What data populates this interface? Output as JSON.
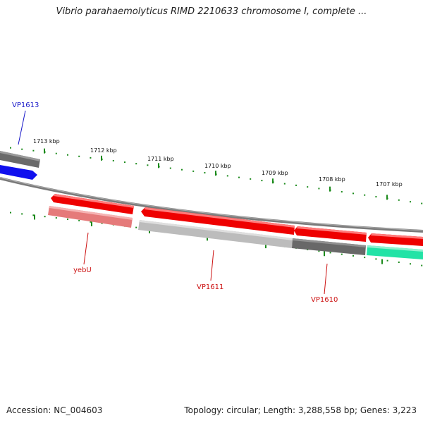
{
  "title": "Vibrio parahaemolyticus RIMD 2210633 chromosome I, complete ...",
  "accession": "Accession: NC_004603",
  "summary": "Topology: circular; Length: 3,288,558 bp; Genes: 3,223",
  "scale_labels": [
    "1713 kbp",
    "1712 kbp",
    "1711 kbp",
    "1710 kbp",
    "1709 kbp",
    "1708 kbp",
    "1707 kbp"
  ],
  "gene_labels": {
    "vp1613": "VP1613",
    "yebu": "yebU",
    "vp1611": "VP1611",
    "vp1610": "VP1610"
  },
  "colors": {
    "tick": "#1b8a1b",
    "backbone": "#808080",
    "red": "#ee0000",
    "pink": "#e57a7a",
    "light_gray": "#b8b8b8",
    "dark_gray": "#686868",
    "blue": "#1010ee",
    "green": "#22e3a6",
    "label_blue": "#1515c8",
    "label_red": "#cc1010"
  }
}
